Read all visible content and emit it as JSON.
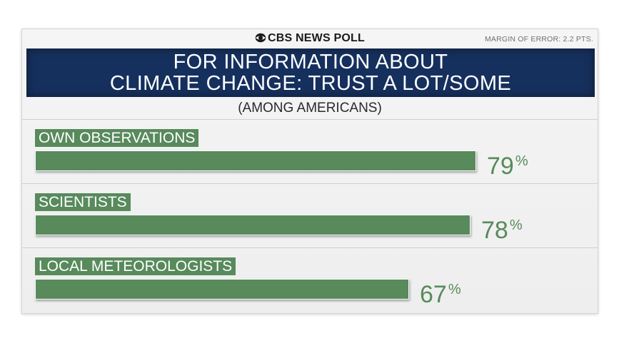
{
  "header": {
    "brand": "CBS NEWS POLL",
    "margin_note": "MARGIN OF ERROR: 2.2 PTS.",
    "title_line1": "FOR INFORMATION ABOUT",
    "title_line2": "CLIMATE CHANGE: TRUST A LOT/SOME",
    "subtitle": "(AMONG AMERICANS)"
  },
  "colors": {
    "bar": "#588a5c",
    "title_band": "#16305e"
  },
  "chart_data": {
    "type": "bar",
    "orientation": "horizontal",
    "categories": [
      "OWN OBSERVATIONS",
      "SCIENTISTS",
      "LOCAL METEOROLOGISTS"
    ],
    "values": [
      79,
      78,
      67
    ],
    "unit": "%",
    "title": "FOR INFORMATION ABOUT CLIMATE CHANGE: TRUST A LOT/SOME",
    "subtitle": "(AMONG AMERICANS)",
    "xlim": [
      0,
      100
    ],
    "grid": false,
    "legend": "none"
  }
}
